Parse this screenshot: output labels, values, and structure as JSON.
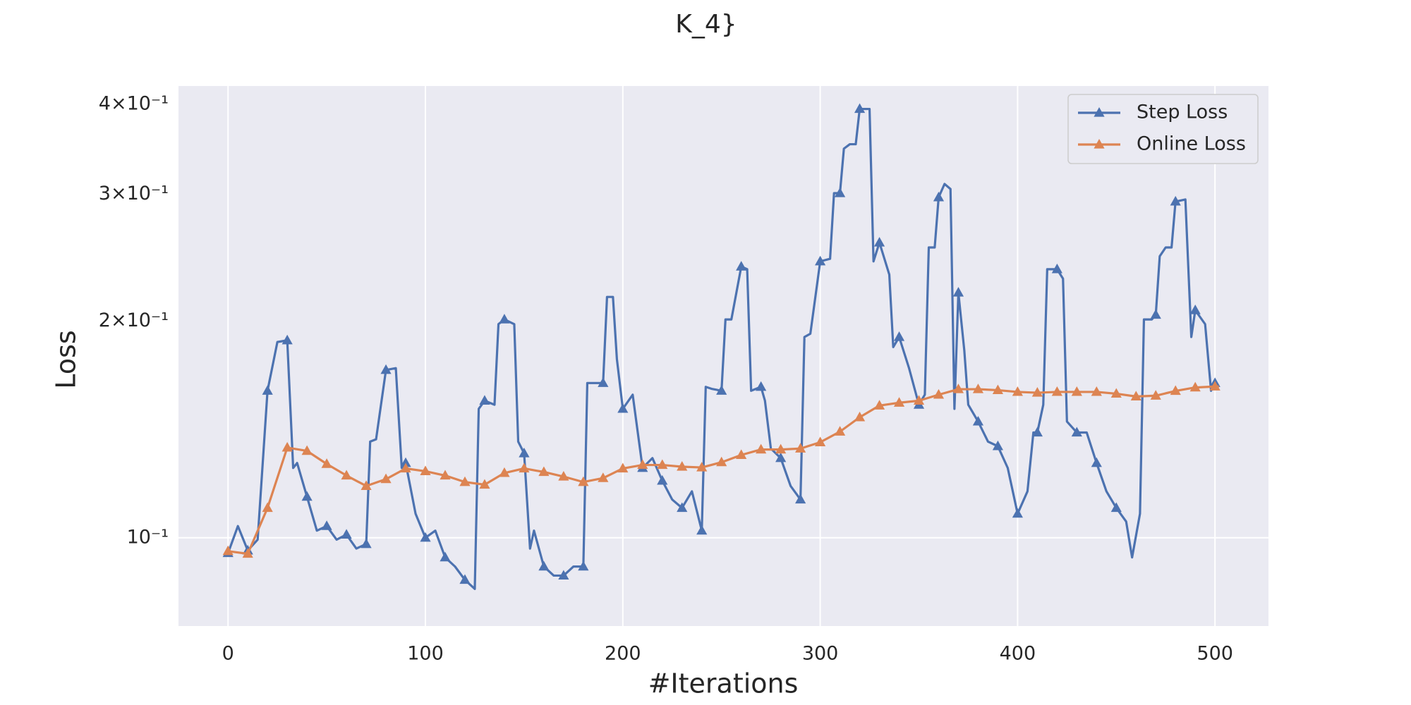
{
  "chart_data": {
    "type": "line",
    "title": "K_4}",
    "x_label": "#Iterations",
    "y_label": "Loss",
    "y_scale": "log",
    "grid": true,
    "legend_position": "upper right",
    "marker": "triangle",
    "xlim": [
      -25.1,
      527.1
    ],
    "ylim": [
      0.0754,
      0.424
    ],
    "xticks": [
      0,
      100,
      200,
      300,
      400,
      500
    ],
    "yticks": [
      {
        "value": 0.1,
        "label": "10⁻¹"
      }
    ],
    "yticks_minor": [
      {
        "value": 0.2,
        "label": "2×10⁻¹"
      },
      {
        "value": 0.3,
        "label": "3×10⁻¹"
      },
      {
        "value": 0.4,
        "label": "4×10⁻¹"
      }
    ],
    "series": [
      {
        "name": "Step Loss",
        "color": "#4c72b0",
        "x": [
          0,
          5,
          10,
          15,
          20,
          25,
          30,
          33,
          35,
          40,
          45,
          50,
          55,
          60,
          65,
          70,
          72,
          75,
          80,
          85,
          88,
          90,
          95,
          100,
          105,
          110,
          115,
          120,
          125,
          127,
          130,
          135,
          137,
          140,
          145,
          147,
          150,
          153,
          155,
          160,
          165,
          170,
          175,
          180,
          182,
          185,
          190,
          192,
          195,
          197,
          200,
          205,
          210,
          215,
          220,
          225,
          230,
          235,
          240,
          242,
          245,
          250,
          252,
          255,
          260,
          263,
          265,
          270,
          272,
          275,
          280,
          285,
          290,
          292,
          295,
          300,
          305,
          307,
          310,
          312,
          315,
          318,
          320,
          325,
          327,
          330,
          335,
          337,
          340,
          345,
          350,
          353,
          355,
          358,
          360,
          363,
          366,
          368,
          370,
          373,
          375,
          380,
          385,
          390,
          395,
          400,
          405,
          408,
          410,
          413,
          415,
          420,
          423,
          425,
          430,
          435,
          440,
          445,
          450,
          455,
          458,
          462,
          464,
          468,
          470,
          472,
          475,
          478,
          480,
          485,
          488,
          490,
          495,
          498,
          500,
          502
        ],
        "values": [
          0.0952,
          0.1038,
          0.096,
          0.0994,
          0.16,
          0.187,
          0.188,
          0.125,
          0.127,
          0.114,
          0.1023,
          0.1038,
          0.0994,
          0.101,
          0.0966,
          0.098,
          0.136,
          0.137,
          0.171,
          0.172,
          0.125,
          0.127,
          0.108,
          0.1,
          0.1023,
          0.0939,
          0.0912,
          0.0874,
          0.0849,
          0.151,
          0.155,
          0.153,
          0.198,
          0.201,
          0.198,
          0.136,
          0.131,
          0.0966,
          0.1023,
          0.0912,
          0.0886,
          0.0886,
          0.0912,
          0.0912,
          0.164,
          0.164,
          0.164,
          0.216,
          0.216,
          0.177,
          0.151,
          0.158,
          0.125,
          0.129,
          0.12,
          0.113,
          0.11,
          0.116,
          0.1023,
          0.162,
          0.161,
          0.16,
          0.201,
          0.201,
          0.238,
          0.236,
          0.16,
          0.162,
          0.155,
          0.133,
          0.129,
          0.118,
          0.113,
          0.19,
          0.192,
          0.242,
          0.244,
          0.301,
          0.301,
          0.347,
          0.352,
          0.352,
          0.394,
          0.394,
          0.242,
          0.257,
          0.232,
          0.184,
          0.19,
          0.172,
          0.153,
          0.158,
          0.253,
          0.253,
          0.297,
          0.31,
          0.305,
          0.151,
          0.219,
          0.182,
          0.153,
          0.145,
          0.136,
          0.134,
          0.125,
          0.108,
          0.116,
          0.14,
          0.14,
          0.153,
          0.236,
          0.236,
          0.229,
          0.145,
          0.14,
          0.14,
          0.127,
          0.116,
          0.11,
          0.1053,
          0.0939,
          0.108,
          0.201,
          0.201,
          0.204,
          0.246,
          0.253,
          0.253,
          0.293,
          0.295,
          0.19,
          0.207,
          0.198,
          0.16,
          0.164,
          0.162
        ]
      },
      {
        "name": "Online Loss",
        "color": "#dd8452",
        "x": [
          0,
          10,
          20,
          30,
          40,
          50,
          60,
          70,
          80,
          90,
          100,
          110,
          120,
          130,
          140,
          150,
          160,
          170,
          180,
          190,
          200,
          210,
          220,
          230,
          240,
          250,
          260,
          270,
          280,
          290,
          300,
          310,
          320,
          330,
          340,
          350,
          360,
          370,
          380,
          390,
          400,
          410,
          420,
          430,
          440,
          450,
          460,
          470,
          480,
          490,
          500,
          502
        ],
        "values": [
          0.0958,
          0.095,
          0.11,
          0.1334,
          0.132,
          0.1266,
          0.122,
          0.118,
          0.1206,
          0.1248,
          0.1237,
          0.122,
          0.1195,
          0.1185,
          0.123,
          0.1248,
          0.1234,
          0.1216,
          0.1195,
          0.121,
          0.1248,
          0.1262,
          0.1262,
          0.1255,
          0.1252,
          0.1273,
          0.1303,
          0.1326,
          0.1326,
          0.133,
          0.1357,
          0.1404,
          0.147,
          0.1526,
          0.154,
          0.155,
          0.158,
          0.1608,
          0.1608,
          0.1603,
          0.1594,
          0.159,
          0.1594,
          0.1594,
          0.1594,
          0.1585,
          0.1571,
          0.1575,
          0.1599,
          0.1617,
          0.1622,
          0.1622
        ]
      }
    ]
  }
}
